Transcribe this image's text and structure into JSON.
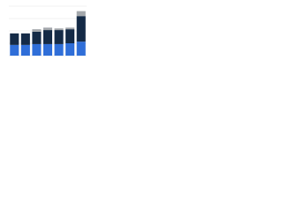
{
  "chart_data": {
    "type": "stacked_bar",
    "categories": [
      null,
      null,
      null,
      null,
      null,
      null,
      null
    ],
    "series": [
      {
        "color": "#2f6ed8",
        "values": [
          13,
          13,
          14,
          14,
          14,
          15,
          17
        ]
      },
      {
        "color": "#142a46",
        "values": [
          14,
          14,
          15,
          17,
          17,
          17,
          31
        ]
      },
      {
        "color": "#a3a7ab",
        "values": [
          0,
          0,
          3,
          3,
          2,
          2,
          6
        ]
      }
    ],
    "ylim": [
      0,
      60
    ],
    "yticks": [
      0,
      15,
      30,
      45,
      60
    ],
    "grid": true
  }
}
